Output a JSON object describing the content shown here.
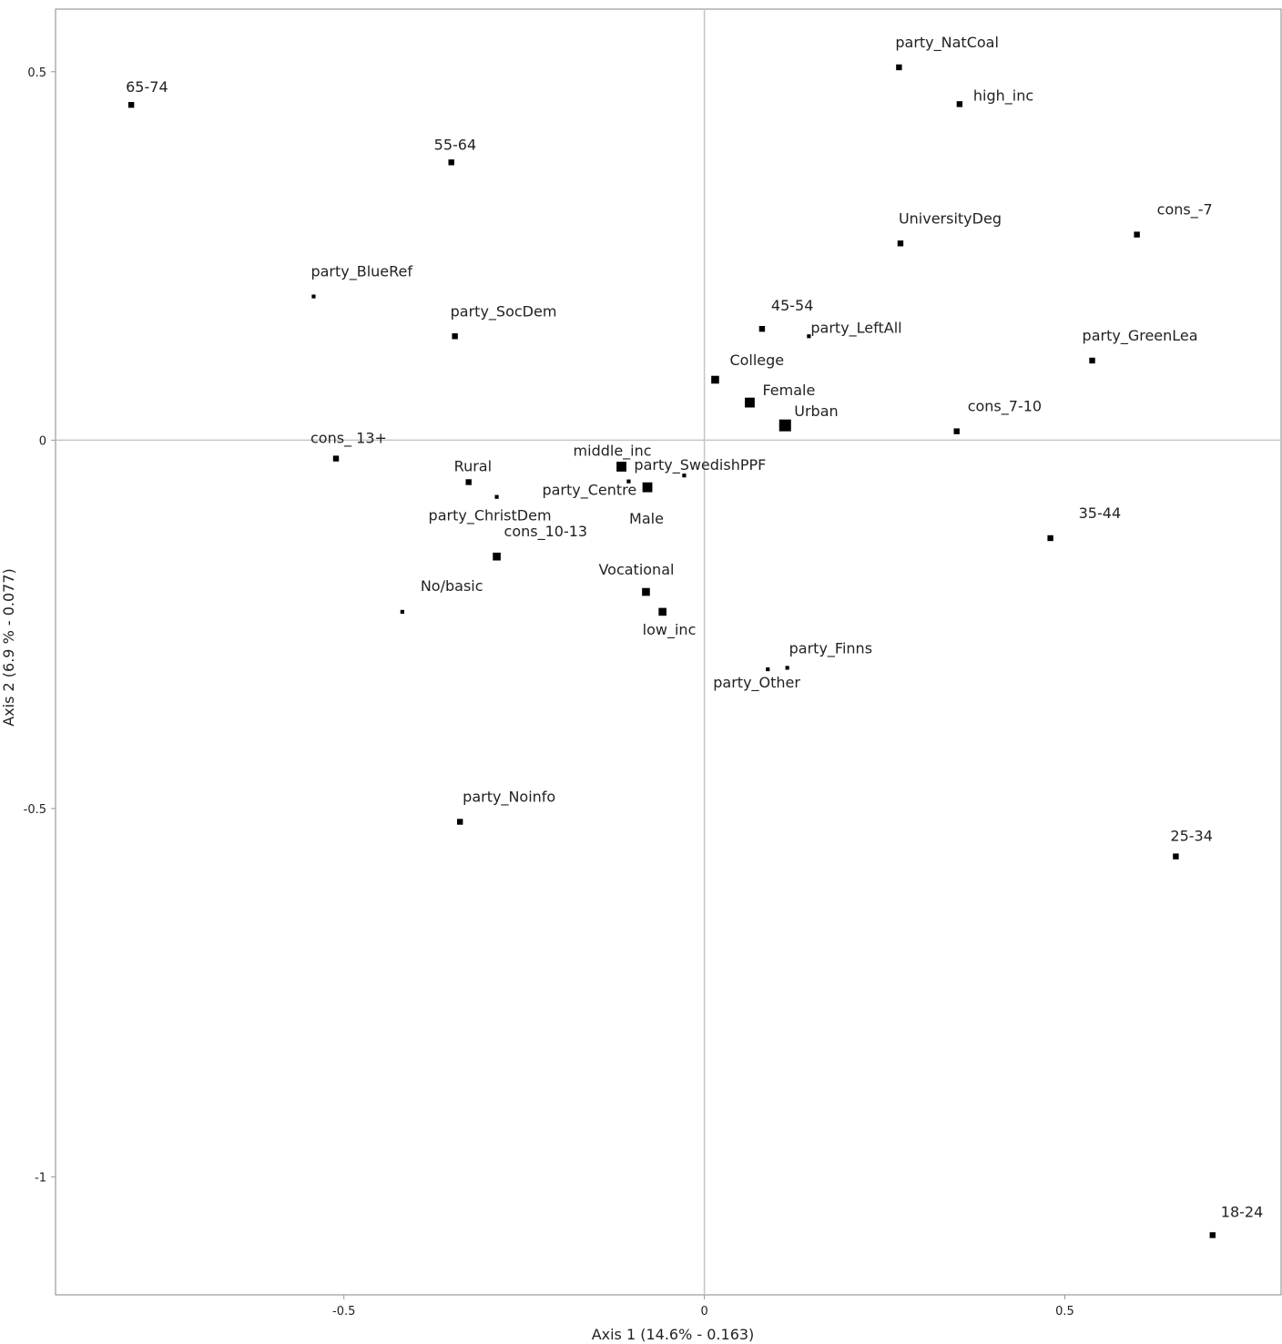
{
  "chart_data": {
    "type": "scatter",
    "title": "",
    "xlabel": "Axis 1 (14.6% - 0.163)",
    "ylabel": "Axis 2 (6.9 % - 0.077)",
    "xlim": [
      -0.9,
      0.8
    ],
    "ylim": [
      -1.16,
      0.585
    ],
    "x_ticks": [
      -0.5,
      0,
      0.5
    ],
    "x_tick_labels": [
      "-0.5",
      "0",
      "0.5"
    ],
    "y_ticks": [
      0.5,
      0,
      -0.5,
      -1
    ],
    "y_tick_labels": [
      "0.5",
      "0",
      "-0.5",
      "-1"
    ],
    "grid": false,
    "reference_lines": {
      "x": 0,
      "y": 0
    },
    "colors": {
      "points": "#000000",
      "frame": "#999999",
      "ref_lines": "#c4c4c4"
    },
    "points": [
      {
        "label": "65-74",
        "x": -0.795,
        "y": 0.455,
        "weight": 2
      },
      {
        "label": "55-64",
        "x": -0.351,
        "y": 0.377,
        "weight": 2
      },
      {
        "label": "party_BlueRef",
        "x": -0.542,
        "y": 0.195,
        "weight": 1
      },
      {
        "label": "party_SocDem",
        "x": -0.346,
        "y": 0.141,
        "weight": 2
      },
      {
        "label": "cons_ 13+",
        "x": -0.511,
        "y": -0.025,
        "weight": 2
      },
      {
        "label": "Rural",
        "x": -0.327,
        "y": -0.057,
        "weight": 2
      },
      {
        "label": "party_ChristDem",
        "x": -0.288,
        "y": -0.077,
        "weight": 1
      },
      {
        "label": "cons_10-13",
        "x": -0.288,
        "y": -0.158,
        "weight": 3
      },
      {
        "label": "No/basic",
        "x": -0.419,
        "y": -0.233,
        "weight": 1
      },
      {
        "label": "middle_inc",
        "x": -0.115,
        "y": -0.036,
        "weight": 4
      },
      {
        "label": "party_Centre",
        "x": -0.105,
        "y": -0.056,
        "weight": 1
      },
      {
        "label": "Male",
        "x": -0.079,
        "y": -0.064,
        "weight": 4
      },
      {
        "label": "party_SwedishPPF",
        "x": -0.028,
        "y": -0.048,
        "weight": 1
      },
      {
        "label": "Vocational",
        "x": -0.081,
        "y": -0.206,
        "weight": 3
      },
      {
        "label": "low_inc",
        "x": -0.058,
        "y": -0.233,
        "weight": 3
      },
      {
        "label": "party_Noinfo",
        "x": -0.339,
        "y": -0.518,
        "weight": 2
      },
      {
        "label": "College",
        "x": 0.015,
        "y": 0.082,
        "weight": 3
      },
      {
        "label": "Female",
        "x": 0.063,
        "y": 0.051,
        "weight": 4
      },
      {
        "label": "Urban",
        "x": 0.112,
        "y": 0.02,
        "weight": 5
      },
      {
        "label": "45-54",
        "x": 0.08,
        "y": 0.151,
        "weight": 2
      },
      {
        "label": "party_LeftAll",
        "x": 0.145,
        "y": 0.141,
        "weight": 1
      },
      {
        "label": "party_NatCoal",
        "x": 0.27,
        "y": 0.506,
        "weight": 2
      },
      {
        "label": "high_inc",
        "x": 0.354,
        "y": 0.456,
        "weight": 2
      },
      {
        "label": "UniversityDeg",
        "x": 0.272,
        "y": 0.267,
        "weight": 2
      },
      {
        "label": "cons_-7",
        "x": 0.6,
        "y": 0.279,
        "weight": 2
      },
      {
        "label": "party_GreenLea",
        "x": 0.538,
        "y": 0.108,
        "weight": 2
      },
      {
        "label": "cons_7-10",
        "x": 0.35,
        "y": 0.012,
        "weight": 2
      },
      {
        "label": "35-44",
        "x": 0.48,
        "y": -0.133,
        "weight": 2
      },
      {
        "label": "party_Finns",
        "x": 0.115,
        "y": -0.309,
        "weight": 1
      },
      {
        "label": "party_Other",
        "x": 0.088,
        "y": -0.311,
        "weight": 1
      },
      {
        "label": "25-34",
        "x": 0.654,
        "y": -0.565,
        "weight": 2
      },
      {
        "label": "18-24",
        "x": 0.705,
        "y": -1.079,
        "weight": 2
      }
    ]
  }
}
